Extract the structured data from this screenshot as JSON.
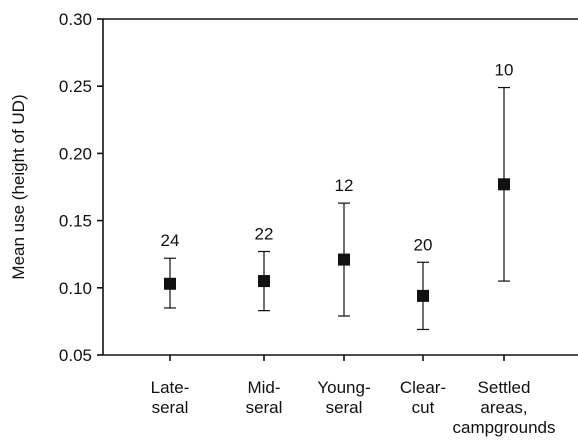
{
  "chart_data": {
    "type": "scatter",
    "title": "",
    "xlabel": "",
    "ylabel": "Mean use (height of UD)",
    "ylim": [
      0.05,
      0.3
    ],
    "yticks": [
      "0.05",
      "0.10",
      "0.15",
      "0.20",
      "0.25",
      "0.30"
    ],
    "grid": false,
    "categories": [
      [
        "Late-",
        "seral"
      ],
      [
        "Mid-",
        "seral"
      ],
      [
        "Young-",
        "seral"
      ],
      [
        "Clear-",
        "cut"
      ],
      [
        "Settled",
        "areas,",
        "campgrounds"
      ]
    ],
    "series": [
      {
        "values": [
          0.103,
          0.105,
          0.121,
          0.094,
          0.177
        ],
        "error_low": [
          0.085,
          0.083,
          0.079,
          0.069,
          0.105
        ],
        "error_high": [
          0.122,
          0.127,
          0.163,
          0.119,
          0.249
        ],
        "n_labels": [
          "24",
          "22",
          "12",
          "20",
          "10"
        ]
      }
    ],
    "colors": {
      "marker": "#111111",
      "axis": "#111111"
    }
  }
}
